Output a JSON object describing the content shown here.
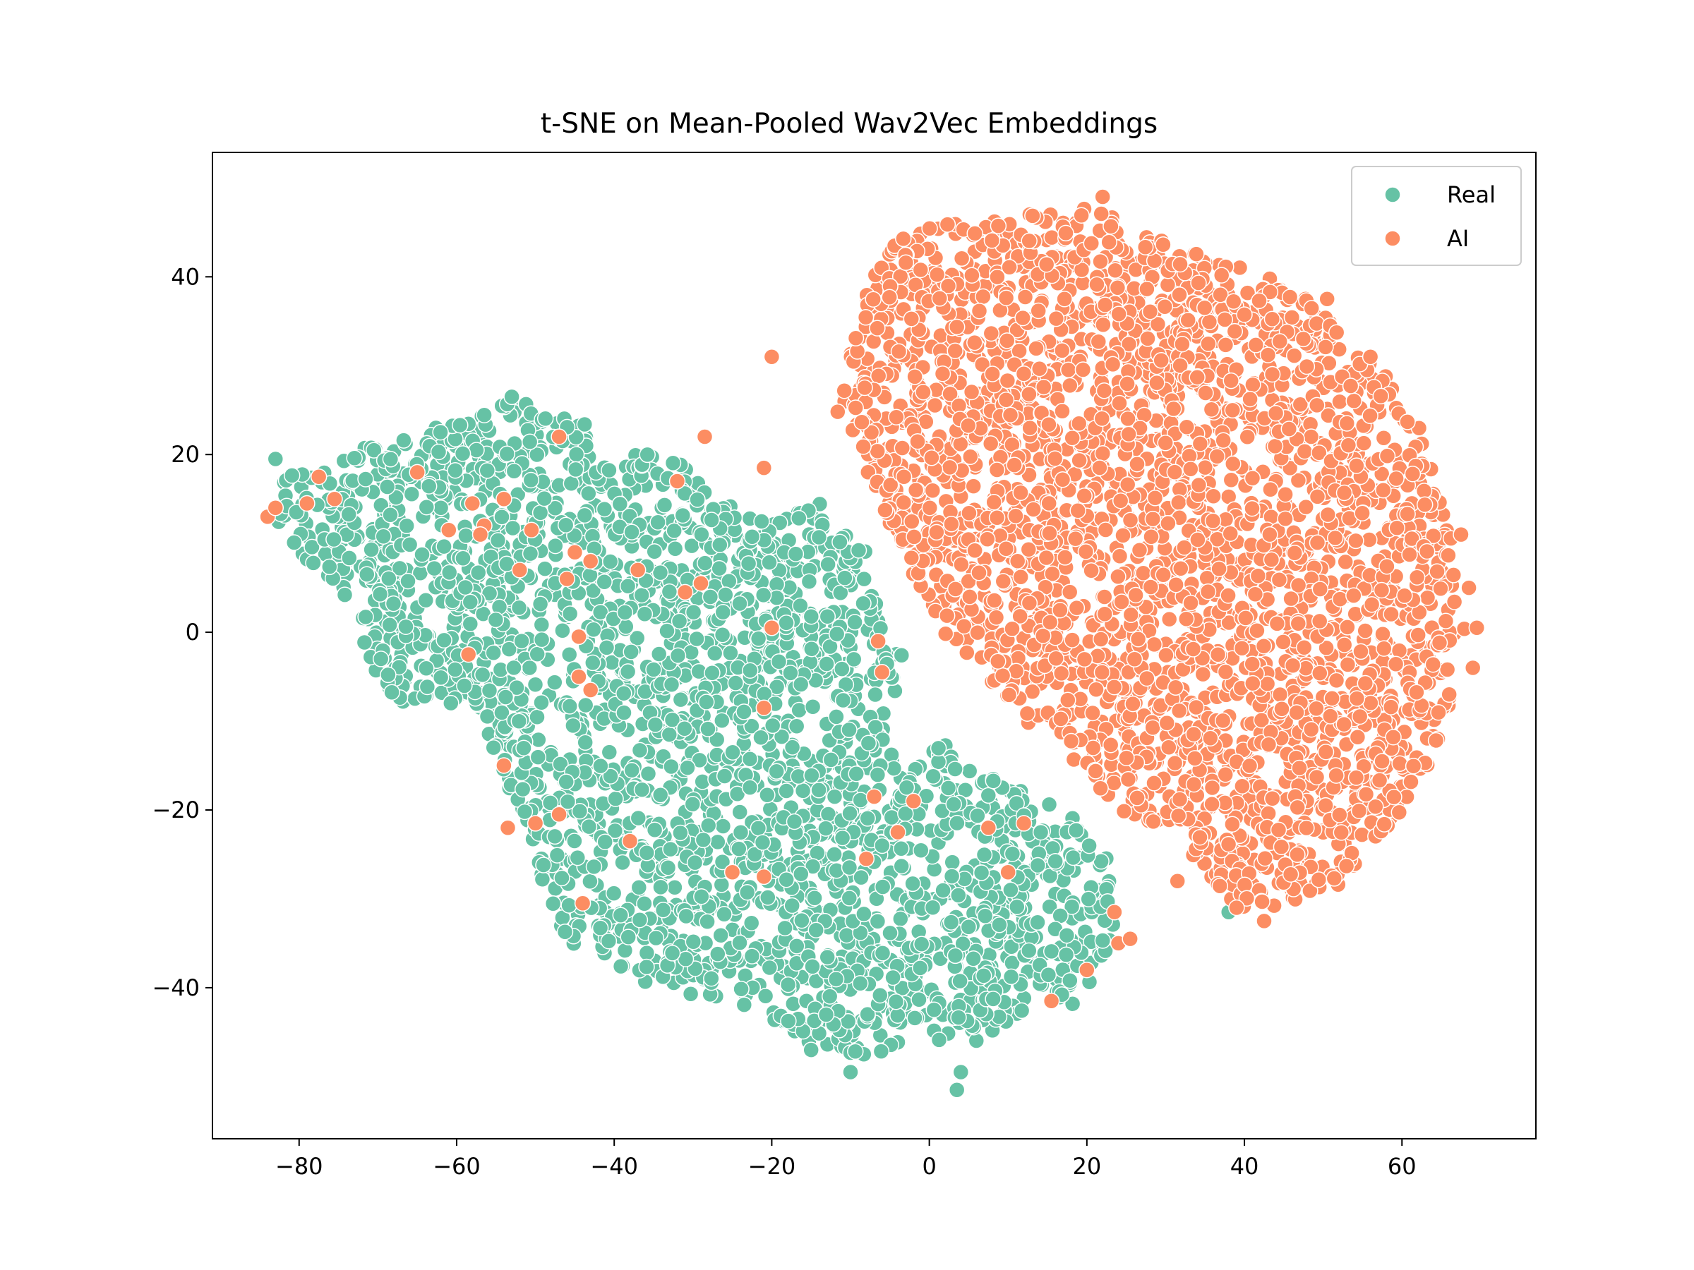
{
  "chart_data": {
    "type": "scatter",
    "title": "t-SNE on Mean-Pooled Wav2Vec Embeddings",
    "xlabel": "",
    "ylabel": "",
    "xlim": [
      -91,
      77
    ],
    "ylim": [
      -57,
      54
    ],
    "xticks": [
      -80,
      -60,
      -40,
      -20,
      0,
      20,
      40,
      60
    ],
    "yticks": [
      -40,
      -20,
      0,
      20,
      40
    ],
    "xtick_labels": [
      "−80",
      "−60",
      "−40",
      "−20",
      "0",
      "20",
      "40",
      "60"
    ],
    "ytick_labels": [
      "−40",
      "−20",
      "0",
      "20",
      "40"
    ],
    "grid": false,
    "legend_position": "top-right",
    "series": [
      {
        "name": "Real",
        "color": "#66c2a5",
        "region_approx": {
          "x_range": [
            -84,
            24
          ],
          "y_range": [
            -52,
            27
          ]
        },
        "outlier_points": [
          {
            "x": -83,
            "y": 19.5
          },
          {
            "x": -53,
            "y": 26.5
          },
          {
            "x": -10,
            "y": -49.5
          },
          {
            "x": 3.5,
            "y": -51.5
          },
          {
            "x": 4,
            "y": -49.5
          },
          {
            "x": -15,
            "y": -47
          },
          {
            "x": 38,
            "y": -31.5
          }
        ]
      },
      {
        "name": "AI",
        "color": "#fc8d62",
        "region_approx": {
          "x_range": [
            -10,
            70
          ],
          "y_range": [
            -32,
            49
          ]
        },
        "outlier_points": [
          {
            "x": -84,
            "y": 13
          },
          {
            "x": -83,
            "y": 14
          },
          {
            "x": -79,
            "y": 14.5
          },
          {
            "x": -77.5,
            "y": 17.5
          },
          {
            "x": -75.5,
            "y": 15
          },
          {
            "x": -65,
            "y": 18
          },
          {
            "x": -61,
            "y": 11.5
          },
          {
            "x": -58,
            "y": 14.5
          },
          {
            "x": -56.5,
            "y": 12
          },
          {
            "x": -57,
            "y": 11
          },
          {
            "x": -54,
            "y": 15
          },
          {
            "x": -52,
            "y": 7
          },
          {
            "x": -50.5,
            "y": 11.5
          },
          {
            "x": -47,
            "y": 22
          },
          {
            "x": -46,
            "y": 6
          },
          {
            "x": -45,
            "y": 9
          },
          {
            "x": -43,
            "y": 8
          },
          {
            "x": -32,
            "y": 17
          },
          {
            "x": -37,
            "y": 7
          },
          {
            "x": -31,
            "y": 4.5
          },
          {
            "x": -29,
            "y": 5.5
          },
          {
            "x": -28.5,
            "y": 22
          },
          {
            "x": -58.5,
            "y": -2.5
          },
          {
            "x": -44.5,
            "y": -0.5
          },
          {
            "x": -44.5,
            "y": -5
          },
          {
            "x": -43,
            "y": -6.5
          },
          {
            "x": -54,
            "y": -15
          },
          {
            "x": -53.5,
            "y": -22
          },
          {
            "x": -50,
            "y": -21.5
          },
          {
            "x": -47,
            "y": -20.5
          },
          {
            "x": -38,
            "y": -23.5
          },
          {
            "x": -44,
            "y": -30.5
          },
          {
            "x": -25,
            "y": -27
          },
          {
            "x": -21,
            "y": -27.5
          },
          {
            "x": -21,
            "y": -8.5
          },
          {
            "x": -20,
            "y": 0.5
          },
          {
            "x": -21,
            "y": 18.5
          },
          {
            "x": -20,
            "y": 31
          },
          {
            "x": -8,
            "y": -25.5
          },
          {
            "x": -4,
            "y": -22.5
          },
          {
            "x": -7,
            "y": -18.5
          },
          {
            "x": -2,
            "y": -19
          },
          {
            "x": -6,
            "y": -4.5
          },
          {
            "x": -6.5,
            "y": -1
          },
          {
            "x": 7.5,
            "y": -22
          },
          {
            "x": 10,
            "y": -27
          },
          {
            "x": 12,
            "y": -21.5
          },
          {
            "x": 15.5,
            "y": -41.5
          },
          {
            "x": 20,
            "y": -38
          },
          {
            "x": 23.5,
            "y": -31.5
          },
          {
            "x": 24,
            "y": -35
          },
          {
            "x": 25.5,
            "y": -34.5
          },
          {
            "x": 31.5,
            "y": -28
          },
          {
            "x": 39,
            "y": -31
          },
          {
            "x": 42.5,
            "y": -32.5
          },
          {
            "x": 22,
            "y": 49
          },
          {
            "x": 50.5,
            "y": 37.5
          },
          {
            "x": 56,
            "y": 31
          },
          {
            "x": 67.5,
            "y": 11
          },
          {
            "x": 68.5,
            "y": 5
          },
          {
            "x": 69.5,
            "y": 0.5
          },
          {
            "x": 69,
            "y": -4
          },
          {
            "x": 66,
            "y": -7
          }
        ]
      }
    ]
  }
}
